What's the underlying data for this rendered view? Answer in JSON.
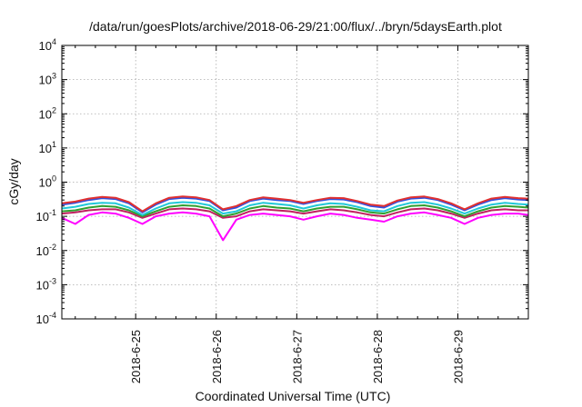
{
  "chart_data": {
    "type": "line",
    "title": "/data/run/goesPlots/archive/2018-06-29/21:00/flux/../bryn/5daysEarth.plot",
    "xlabel": "Coordinated Universal Time (UTC)",
    "ylabel": "cGy/day",
    "yscale": "log",
    "ylim": [
      0.0001,
      10000
    ],
    "xlim": [
      "2018-06-24 02:00",
      "2018-06-29 21:00"
    ],
    "grid": true,
    "legend": "none",
    "y_ticks": [
      {
        "base": "10",
        "exp": "-4"
      },
      {
        "base": "10",
        "exp": "-3"
      },
      {
        "base": "10",
        "exp": "-2"
      },
      {
        "base": "10",
        "exp": "-1"
      },
      {
        "base": "10",
        "exp": "0"
      },
      {
        "base": "10",
        "exp": "1"
      },
      {
        "base": "10",
        "exp": "2"
      },
      {
        "base": "10",
        "exp": "3"
      },
      {
        "base": "10",
        "exp": "4"
      }
    ],
    "x_ticks": [
      "2018-6-25",
      "2018-6-26",
      "2018-6-27",
      "2018-6-28",
      "2018-6-29"
    ],
    "x": [
      "2018-06-24 02:00",
      "2018-06-24 06:00",
      "2018-06-24 10:00",
      "2018-06-24 14:00",
      "2018-06-24 18:00",
      "2018-06-24 22:00",
      "2018-06-25 02:00",
      "2018-06-25 06:00",
      "2018-06-25 10:00",
      "2018-06-25 14:00",
      "2018-06-25 18:00",
      "2018-06-25 22:00",
      "2018-06-26 02:00",
      "2018-06-26 06:00",
      "2018-06-26 10:00",
      "2018-06-26 14:00",
      "2018-06-26 18:00",
      "2018-06-26 22:00",
      "2018-06-27 02:00",
      "2018-06-27 06:00",
      "2018-06-27 10:00",
      "2018-06-27 14:00",
      "2018-06-27 18:00",
      "2018-06-27 22:00",
      "2018-06-28 02:00",
      "2018-06-28 06:00",
      "2018-06-28 10:00",
      "2018-06-28 14:00",
      "2018-06-28 18:00",
      "2018-06-28 22:00",
      "2018-06-29 02:00",
      "2018-06-29 06:00",
      "2018-06-29 10:00",
      "2018-06-29 14:00",
      "2018-06-29 18:00",
      "2018-06-29 21:00"
    ],
    "series": [
      {
        "color": "#e03030",
        "values": [
          0.24,
          0.27,
          0.33,
          0.37,
          0.35,
          0.26,
          0.14,
          0.24,
          0.35,
          0.38,
          0.36,
          0.3,
          0.16,
          0.2,
          0.3,
          0.36,
          0.33,
          0.3,
          0.25,
          0.3,
          0.35,
          0.34,
          0.28,
          0.22,
          0.2,
          0.29,
          0.36,
          0.38,
          0.32,
          0.24,
          0.16,
          0.24,
          0.33,
          0.37,
          0.34,
          0.33
        ]
      },
      {
        "color": "#3050e0",
        "values": [
          0.22,
          0.25,
          0.3,
          0.34,
          0.32,
          0.24,
          0.13,
          0.22,
          0.32,
          0.35,
          0.33,
          0.28,
          0.15,
          0.18,
          0.28,
          0.33,
          0.3,
          0.28,
          0.23,
          0.28,
          0.32,
          0.31,
          0.26,
          0.2,
          0.18,
          0.27,
          0.33,
          0.35,
          0.3,
          0.22,
          0.15,
          0.22,
          0.3,
          0.34,
          0.31,
          0.3
        ]
      },
      {
        "color": "#20c8d8",
        "values": [
          0.17,
          0.19,
          0.23,
          0.25,
          0.24,
          0.18,
          0.11,
          0.17,
          0.24,
          0.26,
          0.25,
          0.21,
          0.12,
          0.14,
          0.21,
          0.25,
          0.23,
          0.21,
          0.17,
          0.21,
          0.24,
          0.23,
          0.19,
          0.15,
          0.14,
          0.2,
          0.25,
          0.26,
          0.22,
          0.17,
          0.12,
          0.17,
          0.22,
          0.25,
          0.23,
          0.22
        ]
      },
      {
        "color": "#30a030",
        "values": [
          0.14,
          0.15,
          0.18,
          0.2,
          0.19,
          0.15,
          0.1,
          0.14,
          0.19,
          0.21,
          0.2,
          0.17,
          0.1,
          0.12,
          0.17,
          0.2,
          0.18,
          0.17,
          0.14,
          0.17,
          0.19,
          0.19,
          0.16,
          0.13,
          0.12,
          0.16,
          0.2,
          0.21,
          0.18,
          0.14,
          0.1,
          0.14,
          0.18,
          0.2,
          0.19,
          0.18
        ]
      },
      {
        "color": "#c02060",
        "values": [
          0.12,
          0.13,
          0.15,
          0.16,
          0.16,
          0.13,
          0.09,
          0.12,
          0.16,
          0.17,
          0.16,
          0.14,
          0.09,
          0.1,
          0.14,
          0.16,
          0.15,
          0.14,
          0.12,
          0.14,
          0.16,
          0.15,
          0.13,
          0.11,
          0.1,
          0.13,
          0.16,
          0.17,
          0.15,
          0.12,
          0.09,
          0.12,
          0.15,
          0.16,
          0.15,
          0.15
        ]
      },
      {
        "color": "#ff00ff",
        "values": [
          0.09,
          0.06,
          0.11,
          0.13,
          0.12,
          0.09,
          0.06,
          0.1,
          0.12,
          0.13,
          0.12,
          0.1,
          0.02,
          0.08,
          0.11,
          0.12,
          0.11,
          0.1,
          0.08,
          0.1,
          0.12,
          0.11,
          0.09,
          0.08,
          0.07,
          0.1,
          0.12,
          0.13,
          0.11,
          0.09,
          0.06,
          0.09,
          0.11,
          0.12,
          0.12,
          0.11
        ]
      }
    ]
  }
}
